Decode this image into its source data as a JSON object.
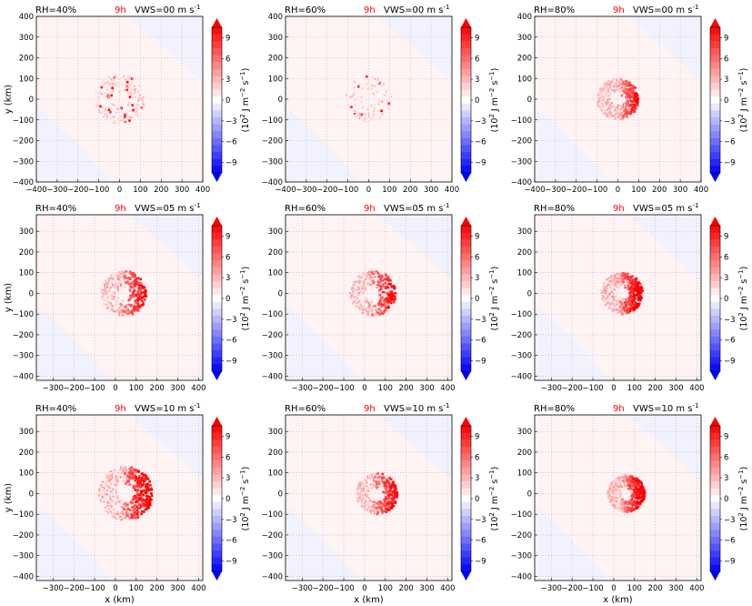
{
  "chart_data": [
    {
      "type": "heatmap",
      "rh_label": "RH=40%",
      "time_label": "9h",
      "vws_label": "VWS=00 m s",
      "vws_sup": "-1",
      "xlim": [
        -400,
        400
      ],
      "ylim": [
        -400,
        400
      ],
      "xticks": [
        -400,
        -300,
        -200,
        -100,
        0,
        100,
        200,
        300,
        400
      ],
      "yticks": [
        -400,
        -300,
        -200,
        -100,
        0,
        100,
        200,
        300,
        400
      ],
      "xlabel": "",
      "ylabel": "y (km)",
      "storm_center": [
        0,
        0
      ],
      "core_radius_km": 120,
      "intensity": "weak",
      "bias_x_km": 0
    },
    {
      "type": "heatmap",
      "rh_label": "RH=60%",
      "time_label": "9h",
      "vws_label": "VWS=00 m s",
      "vws_sup": "-1",
      "xlim": [
        -400,
        400
      ],
      "ylim": [
        -400,
        400
      ],
      "xticks": [
        -400,
        -300,
        -200,
        -100,
        0,
        100,
        200,
        300,
        400
      ],
      "yticks": [
        -400,
        -300,
        -200,
        -100,
        0,
        100,
        200,
        300,
        400
      ],
      "xlabel": "",
      "ylabel": "",
      "storm_center": [
        0,
        0
      ],
      "core_radius_km": 110,
      "intensity": "sparse",
      "bias_x_km": 0
    },
    {
      "type": "heatmap",
      "rh_label": "RH=80%",
      "time_label": "9h",
      "vws_label": "VWS=00 m s",
      "vws_sup": "-1",
      "xlim": [
        -400,
        400
      ],
      "ylim": [
        -400,
        400
      ],
      "xticks": [
        -400,
        -300,
        -200,
        -100,
        0,
        100,
        200,
        300,
        400
      ],
      "yticks": [
        -400,
        -300,
        -200,
        -100,
        0,
        100,
        200,
        300,
        400
      ],
      "xlabel": "",
      "ylabel": "",
      "storm_center": [
        0,
        0
      ],
      "core_radius_km": 100,
      "intensity": "strong",
      "bias_x_km": 0
    },
    {
      "type": "heatmap",
      "rh_label": "RH=40%",
      "time_label": "9h",
      "vws_label": "VWS=05 m s",
      "vws_sup": "-1",
      "xlim": [
        -380,
        420
      ],
      "ylim": [
        -420,
        380
      ],
      "xticks": [
        -300,
        -200,
        -100,
        0,
        100,
        200,
        300,
        400
      ],
      "yticks": [
        -400,
        -300,
        -200,
        -100,
        0,
        100,
        200,
        300
      ],
      "xlabel": "",
      "ylabel": "y (km)",
      "storm_center": [
        40,
        0
      ],
      "core_radius_km": 110,
      "intensity": "medium",
      "bias_x_km": 60
    },
    {
      "type": "heatmap",
      "rh_label": "RH=60%",
      "time_label": "9h",
      "vws_label": "VWS=05 m s",
      "vws_sup": "-1",
      "xlim": [
        -380,
        420
      ],
      "ylim": [
        -420,
        380
      ],
      "xticks": [
        -300,
        -200,
        -100,
        0,
        100,
        200,
        300,
        400
      ],
      "yticks": [
        -400,
        -300,
        -200,
        -100,
        0,
        100,
        200,
        300
      ],
      "xlabel": "",
      "ylabel": "",
      "storm_center": [
        40,
        0
      ],
      "core_radius_km": 110,
      "intensity": "medium",
      "bias_x_km": 70
    },
    {
      "type": "heatmap",
      "rh_label": "RH=80%",
      "time_label": "9h",
      "vws_label": "VWS=05 m s",
      "vws_sup": "-1",
      "xlim": [
        -380,
        420
      ],
      "ylim": [
        -420,
        380
      ],
      "xticks": [
        -300,
        -200,
        -100,
        0,
        100,
        200,
        300,
        400
      ],
      "yticks": [
        -400,
        -300,
        -200,
        -100,
        0,
        100,
        200,
        300
      ],
      "xlabel": "",
      "ylabel": "",
      "storm_center": [
        40,
        0
      ],
      "core_radius_km": 100,
      "intensity": "strong",
      "bias_x_km": 60
    },
    {
      "type": "heatmap",
      "rh_label": "RH=40%",
      "time_label": "9h",
      "vws_label": "VWS=10 m s",
      "vws_sup": "-1",
      "xlim": [
        -380,
        420
      ],
      "ylim": [
        -420,
        380
      ],
      "xticks": [
        -300,
        -200,
        -100,
        0,
        100,
        200,
        300,
        400
      ],
      "yticks": [
        -400,
        -300,
        -200,
        -100,
        0,
        100,
        200,
        300
      ],
      "xlabel": "x (km)",
      "ylabel": "y (km)",
      "storm_center": [
        50,
        0
      ],
      "core_radius_km": 130,
      "intensity": "strong",
      "bias_x_km": 80
    },
    {
      "type": "heatmap",
      "rh_label": "RH=60%",
      "time_label": "9h",
      "vws_label": "VWS=10 m s",
      "vws_sup": "-1",
      "xlim": [
        -380,
        420
      ],
      "ylim": [
        -420,
        380
      ],
      "xticks": [
        -300,
        -200,
        -100,
        0,
        100,
        200,
        300,
        400
      ],
      "yticks": [
        -400,
        -300,
        -200,
        -100,
        0,
        100,
        200,
        300
      ],
      "xlabel": "x (km)",
      "ylabel": "",
      "storm_center": [
        60,
        0
      ],
      "core_radius_km": 100,
      "intensity": "medium",
      "bias_x_km": 80
    },
    {
      "type": "heatmap",
      "rh_label": "RH=80%",
      "time_label": "9h",
      "vws_label": "VWS=10 m s",
      "vws_sup": "-1",
      "xlim": [
        -380,
        420
      ],
      "ylim": [
        -420,
        380
      ],
      "xticks": [
        -300,
        -200,
        -100,
        0,
        100,
        200,
        300,
        400
      ],
      "yticks": [
        -400,
        -300,
        -200,
        -100,
        0,
        100,
        200,
        300
      ],
      "xlabel": "x (km)",
      "ylabel": "",
      "storm_center": [
        60,
        0
      ],
      "core_radius_km": 90,
      "intensity": "strong",
      "bias_x_km": 60
    }
  ],
  "colorbar": {
    "ticks": [
      "9",
      "6",
      "3",
      "0",
      "−3",
      "−6",
      "−9"
    ],
    "label_pre": "(10",
    "label_exp": "2",
    "label_mid": " J m",
    "label_exp2": "−2",
    "label_mid2": " s",
    "label_exp3": "−1",
    "label_post": ")",
    "vmin": -10.5,
    "vmax": 10.5,
    "colors": {
      "pos": "#ff0000",
      "neg": "#0000ff",
      "neutral": "#ffffff"
    }
  },
  "colors": {
    "time_label": "#ff0000",
    "grid": "#b0b0c0"
  }
}
